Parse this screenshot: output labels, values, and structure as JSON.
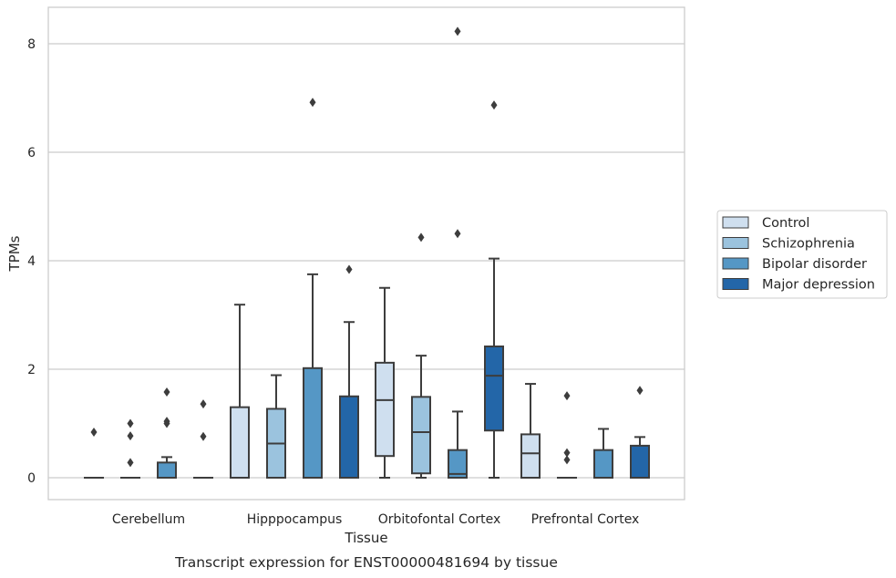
{
  "chart_data": {
    "type": "box",
    "caption": "Transcript expression for ENST00000481694 by tissue",
    "xlabel": "Tissue",
    "ylabel": "TPMs",
    "ylim": [
      -0.4,
      8.65
    ],
    "yticks": [
      0,
      2,
      4,
      6,
      8
    ],
    "grid": "horizontal",
    "legend_position": "right",
    "categories": [
      "Cerebellum",
      "Hipppocampus",
      "Orbitofontal Cortex",
      "Prefrontal Cortex"
    ],
    "series": [
      {
        "name": "Control",
        "color": "#cfdfef",
        "boxes": [
          {
            "q1": 0,
            "median": 0,
            "q3": 0,
            "whisker_low": 0,
            "whisker_high": 0,
            "outliers": [
              0.84
            ]
          },
          {
            "q1": 0,
            "median": 0,
            "q3": 1.3,
            "whisker_low": 0,
            "whisker_high": 3.19,
            "outliers": []
          },
          {
            "q1": 0.4,
            "median": 1.43,
            "q3": 2.12,
            "whisker_low": 0,
            "whisker_high": 3.5,
            "outliers": []
          },
          {
            "q1": 0,
            "median": 0.45,
            "q3": 0.8,
            "whisker_low": 0,
            "whisker_high": 1.73,
            "outliers": []
          }
        ]
      },
      {
        "name": "Schizophrenia",
        "color": "#9bc3de",
        "boxes": [
          {
            "q1": 0,
            "median": 0,
            "q3": 0,
            "whisker_low": 0,
            "whisker_high": 0,
            "outliers": [
              0.28,
              0.77,
              1.0
            ]
          },
          {
            "q1": 0,
            "median": 0.63,
            "q3": 1.27,
            "whisker_low": 0,
            "whisker_high": 1.89,
            "outliers": []
          },
          {
            "q1": 0.08,
            "median": 0.84,
            "q3": 1.49,
            "whisker_low": 0,
            "whisker_high": 2.25,
            "outliers": [
              4.43
            ]
          },
          {
            "q1": 0,
            "median": 0,
            "q3": 0,
            "whisker_low": 0,
            "whisker_high": 0,
            "outliers": [
              0.33,
              0.46,
              1.51
            ]
          }
        ]
      },
      {
        "name": "Bipolar disorder",
        "color": "#5597c5",
        "boxes": [
          {
            "q1": 0,
            "median": 0,
            "q3": 0.28,
            "whisker_low": 0,
            "whisker_high": 0.38,
            "outliers": [
              1.0,
              1.04,
              1.58
            ]
          },
          {
            "q1": 0,
            "median": 0,
            "q3": 2.02,
            "whisker_low": 0,
            "whisker_high": 3.75,
            "outliers": [
              6.92
            ]
          },
          {
            "q1": 0,
            "median": 0.07,
            "q3": 0.51,
            "whisker_low": 0,
            "whisker_high": 1.22,
            "outliers": [
              4.5,
              8.23
            ]
          },
          {
            "q1": 0,
            "median": 0,
            "q3": 0.51,
            "whisker_low": 0,
            "whisker_high": 0.9,
            "outliers": []
          }
        ]
      },
      {
        "name": "Major depression",
        "color": "#2366a8",
        "boxes": [
          {
            "q1": 0,
            "median": 0,
            "q3": 0,
            "whisker_low": 0,
            "whisker_high": 0,
            "outliers": [
              0.76,
              1.36
            ]
          },
          {
            "q1": 0,
            "median": 0,
            "q3": 1.5,
            "whisker_low": 0,
            "whisker_high": 2.87,
            "outliers": [
              3.84
            ]
          },
          {
            "q1": 0.87,
            "median": 1.88,
            "q3": 2.42,
            "whisker_low": 0,
            "whisker_high": 4.04,
            "outliers": [
              6.87
            ]
          },
          {
            "q1": 0,
            "median": 0,
            "q3": 0.59,
            "whisker_low": 0,
            "whisker_high": 0.75,
            "outliers": [
              1.61
            ]
          }
        ]
      }
    ]
  }
}
